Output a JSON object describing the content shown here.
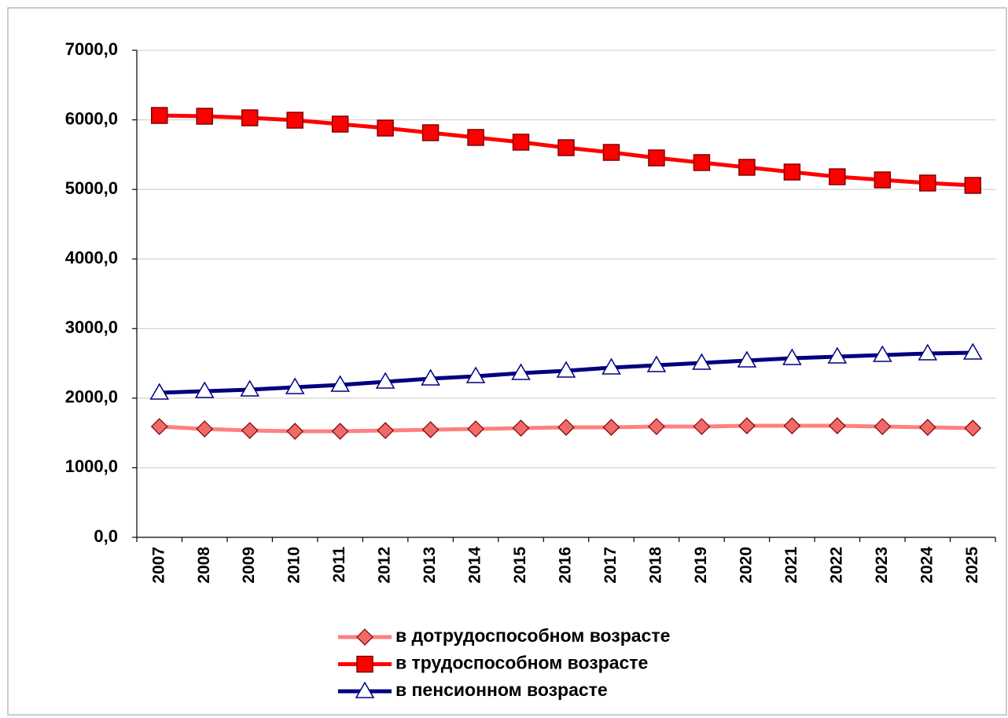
{
  "chart_data": {
    "type": "line",
    "categories": [
      "2007",
      "2008",
      "2009",
      "2010",
      "2011",
      "2012",
      "2013",
      "2014",
      "2015",
      "2016",
      "2017",
      "2018",
      "2019",
      "2020",
      "2021",
      "2022",
      "2023",
      "2024",
      "2025"
    ],
    "series": [
      {
        "name": "в дотрудоспособном возрасте",
        "color": "#ff8080",
        "marker": "diamond",
        "marker_color": "#f06a6a",
        "values": [
          1592,
          1558,
          1535,
          1524,
          1524,
          1535,
          1547,
          1558,
          1569,
          1581,
          1581,
          1592,
          1592,
          1603,
          1603,
          1603,
          1592,
          1581,
          1569
        ]
      },
      {
        "name": "в трудоспособном возрасте",
        "color": "#ff0000",
        "marker": "square",
        "marker_color": "#ff0000",
        "values": [
          6063,
          6052,
          6029,
          5995,
          5939,
          5882,
          5815,
          5747,
          5679,
          5600,
          5532,
          5453,
          5386,
          5318,
          5250,
          5182,
          5137,
          5092,
          5058
        ]
      },
      {
        "name": "в пенсионном возрасте",
        "color": "#000080",
        "marker": "triangle",
        "marker_color": "#ffffff",
        "values": [
          2077,
          2100,
          2123,
          2157,
          2190,
          2236,
          2281,
          2315,
          2360,
          2394,
          2439,
          2473,
          2506,
          2540,
          2574,
          2597,
          2619,
          2642,
          2653
        ]
      }
    ],
    "ylim": [
      0,
      7000
    ],
    "yticks": [
      {
        "value": 0,
        "label": "0,0"
      },
      {
        "value": 1000,
        "label": "1000,0"
      },
      {
        "value": 2000,
        "label": "2000,0"
      },
      {
        "value": 3000,
        "label": "3000,0"
      },
      {
        "value": 4000,
        "label": "4000,0"
      },
      {
        "value": 5000,
        "label": "5000,0"
      },
      {
        "value": 6000,
        "label": "6000,0"
      },
      {
        "value": 7000,
        "label": "7000,0"
      }
    ],
    "grid": true,
    "legend": "bottom"
  }
}
